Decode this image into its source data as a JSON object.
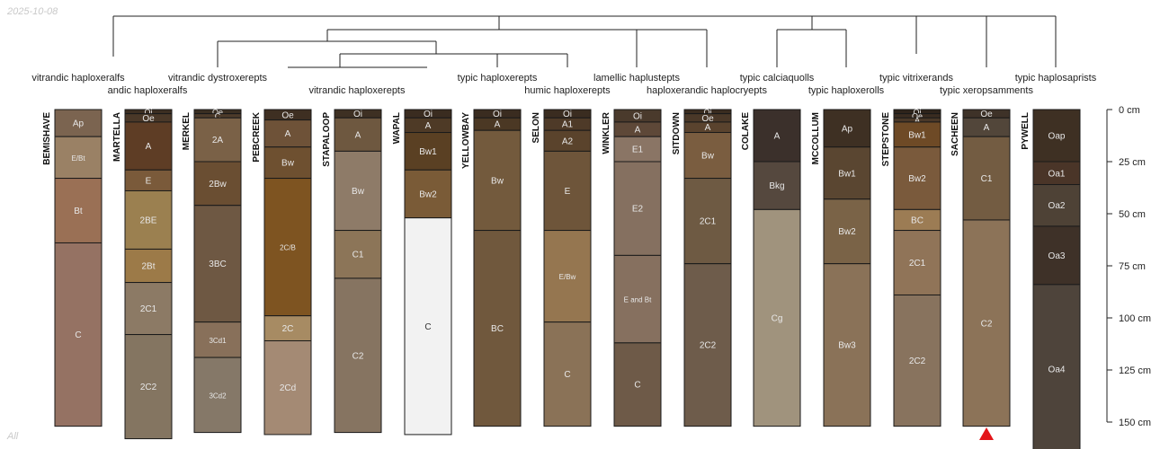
{
  "date_stamp": "2025-10-08",
  "footer_label": "All",
  "depth_axis": {
    "unit": "cm",
    "max": 150,
    "ticks": [
      0,
      25,
      50,
      75,
      100,
      125,
      150
    ],
    "tick_labels": [
      "0 cm",
      "25 cm",
      "50 cm",
      "75 cm",
      "100 cm",
      "125 cm",
      "150 cm"
    ]
  },
  "taxa_row1": [
    "vitrandic haploxeralfs",
    "vitrandic dystroxerepts",
    "typic haploxerepts",
    "lamellic haplustepts",
    "typic calciaquolls",
    "typic vitrixerands",
    "typic haplosaprists"
  ],
  "taxa_row2": [
    "andic haploxeralfs",
    "vitrandic haploxerepts",
    "humic haploxerepts",
    "haploxerandic haplocryepts",
    "typic haploxerolls",
    "typic xeropsamments"
  ],
  "profiles": [
    {
      "name": "BEMISHAVE",
      "horizons": [
        {
          "label": "Ap",
          "top": 0,
          "bottom": 13,
          "color": "#7b6450"
        },
        {
          "label": "E/Bt",
          "top": 13,
          "bottom": 33,
          "color": "#9a8165"
        },
        {
          "label": "Bt",
          "top": 33,
          "bottom": 64,
          "color": "#9a7055"
        },
        {
          "label": "C",
          "top": 64,
          "bottom": 152,
          "color": "#957263"
        }
      ]
    },
    {
      "name": "MARTELLA",
      "horizons": [
        {
          "label": "Oi",
          "top": 0,
          "bottom": 2,
          "color": "#3c2e22"
        },
        {
          "label": "Oe",
          "top": 2,
          "bottom": 6,
          "color": "#4a3828"
        },
        {
          "label": "A",
          "top": 6,
          "bottom": 29,
          "color": "#5e3d25"
        },
        {
          "label": "E",
          "top": 29,
          "bottom": 39,
          "color": "#7a5a3a"
        },
        {
          "label": "2BE",
          "top": 39,
          "bottom": 67,
          "color": "#9b8050"
        },
        {
          "label": "2Bt",
          "top": 67,
          "bottom": 83,
          "color": "#9c7a48"
        },
        {
          "label": "2C1",
          "top": 83,
          "bottom": 108,
          "color": "#8c7a65"
        },
        {
          "label": "2C2",
          "top": 108,
          "bottom": 158,
          "color": "#847561"
        }
      ]
    },
    {
      "name": "MERKEL",
      "horizons": [
        {
          "label": "Oe",
          "top": 0,
          "bottom": 2,
          "color": "#3a2e22"
        },
        {
          "label": "C",
          "top": 2,
          "bottom": 4,
          "color": "#4d3b2a"
        },
        {
          "label": "2A",
          "top": 4,
          "bottom": 25,
          "color": "#7a6147"
        },
        {
          "label": "2Bw",
          "top": 25,
          "bottom": 46,
          "color": "#6a4e32"
        },
        {
          "label": "3BC",
          "top": 46,
          "bottom": 102,
          "color": "#6e5843"
        },
        {
          "label": "3Cd1",
          "top": 102,
          "bottom": 119,
          "color": "#88705a"
        },
        {
          "label": "3Cd2",
          "top": 119,
          "bottom": 155,
          "color": "#857868"
        }
      ]
    },
    {
      "name": "PEBCREEK",
      "horizons": [
        {
          "label": "Oe",
          "top": 0,
          "bottom": 5,
          "color": "#3e2f22"
        },
        {
          "label": "A",
          "top": 5,
          "bottom": 18,
          "color": "#6e5238"
        },
        {
          "label": "Bw",
          "top": 18,
          "bottom": 33,
          "color": "#6e5030"
        },
        {
          "label": "2C/B",
          "top": 33,
          "bottom": 99,
          "color": "#7e5421"
        },
        {
          "label": "2C",
          "top": 99,
          "bottom": 111,
          "color": "#a78b63"
        },
        {
          "label": "2Cd",
          "top": 111,
          "bottom": 156,
          "color": "#a48a74"
        }
      ]
    },
    {
      "name": "STAPALOOP",
      "horizons": [
        {
          "label": "Oi",
          "top": 0,
          "bottom": 4,
          "color": "#3e3023"
        },
        {
          "label": "A",
          "top": 4,
          "bottom": 20,
          "color": "#6e5840"
        },
        {
          "label": "Bw",
          "top": 20,
          "bottom": 58,
          "color": "#8e7b68"
        },
        {
          "label": "C1",
          "top": 58,
          "bottom": 81,
          "color": "#8c7558"
        },
        {
          "label": "C2",
          "top": 81,
          "bottom": 155,
          "color": "#867461"
        }
      ]
    },
    {
      "name": "WAPAL",
      "horizons": [
        {
          "label": "Oi",
          "top": 0,
          "bottom": 4,
          "color": "#3a2c20"
        },
        {
          "label": "A",
          "top": 4,
          "bottom": 11,
          "color": "#4e3a26"
        },
        {
          "label": "Bw1",
          "top": 11,
          "bottom": 29,
          "color": "#5a4023"
        },
        {
          "label": "Bw2",
          "top": 29,
          "bottom": 52,
          "color": "#7a5b37"
        },
        {
          "label": "C",
          "top": 52,
          "bottom": 156,
          "color": "#f2f2f2"
        }
      ]
    },
    {
      "name": "YELLOWBAY",
      "horizons": [
        {
          "label": "Oi",
          "top": 0,
          "bottom": 4,
          "color": "#3a2c20"
        },
        {
          "label": "A",
          "top": 4,
          "bottom": 10,
          "color": "#4b3824"
        },
        {
          "label": "Bw",
          "top": 10,
          "bottom": 58,
          "color": "#735a3d"
        },
        {
          "label": "BC",
          "top": 58,
          "bottom": 152,
          "color": "#70583d"
        }
      ]
    },
    {
      "name": "SELON",
      "horizons": [
        {
          "label": "Oi",
          "top": 0,
          "bottom": 4,
          "color": "#3a2c20"
        },
        {
          "label": "A1",
          "top": 4,
          "bottom": 10,
          "color": "#4e3a28"
        },
        {
          "label": "A2",
          "top": 10,
          "bottom": 20,
          "color": "#5a432c"
        },
        {
          "label": "E",
          "top": 20,
          "bottom": 58,
          "color": "#6e553a"
        },
        {
          "label": "E/Bw",
          "top": 58,
          "bottom": 102,
          "color": "#957650"
        },
        {
          "label": "C",
          "top": 102,
          "bottom": 152,
          "color": "#8a7257"
        }
      ]
    },
    {
      "name": "WINKLER",
      "horizons": [
        {
          "label": "Oi",
          "top": 0,
          "bottom": 6,
          "color": "#4a3a2c"
        },
        {
          "label": "A",
          "top": 6,
          "bottom": 13,
          "color": "#5e4838"
        },
        {
          "label": "E1",
          "top": 13,
          "bottom": 25,
          "color": "#8a7565"
        },
        {
          "label": "E2",
          "top": 25,
          "bottom": 70,
          "color": "#857060"
        },
        {
          "label": "E and Bt",
          "top": 70,
          "bottom": 112,
          "color": "#86705f"
        },
        {
          "label": "C",
          "top": 112,
          "bottom": 152,
          "color": "#6e5a48"
        }
      ]
    },
    {
      "name": "SITDOWN",
      "horizons": [
        {
          "label": "Oi",
          "top": 0,
          "bottom": 2,
          "color": "#3a2c20"
        },
        {
          "label": "Oe",
          "top": 2,
          "bottom": 6,
          "color": "#4a3828"
        },
        {
          "label": "A",
          "top": 6,
          "bottom": 11,
          "color": "#5a432e"
        },
        {
          "label": "Bw",
          "top": 11,
          "bottom": 33,
          "color": "#7a5d40"
        },
        {
          "label": "2C1",
          "top": 33,
          "bottom": 74,
          "color": "#6e5a43"
        },
        {
          "label": "2C2",
          "top": 74,
          "bottom": 152,
          "color": "#6e5c4b"
        }
      ]
    },
    {
      "name": "COLAKE",
      "horizons": [
        {
          "label": "A",
          "top": 0,
          "bottom": 25,
          "color": "#3b302b"
        },
        {
          "label": "Bkg",
          "top": 25,
          "bottom": 48,
          "color": "#55483e"
        },
        {
          "label": "Cg",
          "top": 48,
          "bottom": 152,
          "color": "#a0937d"
        }
      ]
    },
    {
      "name": "MCCOLLUM",
      "horizons": [
        {
          "label": "Ap",
          "top": 0,
          "bottom": 18,
          "color": "#3e3023"
        },
        {
          "label": "Bw1",
          "top": 18,
          "bottom": 43,
          "color": "#5a4631"
        },
        {
          "label": "Bw2",
          "top": 43,
          "bottom": 74,
          "color": "#7a6347"
        },
        {
          "label": "Bw3",
          "top": 74,
          "bottom": 152,
          "color": "#8a7258"
        }
      ]
    },
    {
      "name": "STEPSTONE",
      "horizons": [
        {
          "label": "Oi",
          "top": 0,
          "bottom": 2,
          "color": "#2e241b"
        },
        {
          "label": "Oe",
          "top": 2,
          "bottom": 4,
          "color": "#3a2c20"
        },
        {
          "label": "A",
          "top": 4,
          "bottom": 6,
          "color": "#4a3828"
        },
        {
          "label": "Bw1",
          "top": 6,
          "bottom": 18,
          "color": "#6e4a26"
        },
        {
          "label": "Bw2",
          "top": 18,
          "bottom": 48,
          "color": "#7a5a3c"
        },
        {
          "label": "BC",
          "top": 48,
          "bottom": 58,
          "color": "#9c7c54"
        },
        {
          "label": "2C1",
          "top": 58,
          "bottom": 89,
          "color": "#907458"
        },
        {
          "label": "2C2",
          "top": 89,
          "bottom": 152,
          "color": "#88735e"
        }
      ]
    },
    {
      "name": "SACHEEN",
      "horizons": [
        {
          "label": "Oe",
          "top": 0,
          "bottom": 4,
          "color": "#3e3228"
        },
        {
          "label": "A",
          "top": 4,
          "bottom": 13,
          "color": "#52463a"
        },
        {
          "label": "C1",
          "top": 13,
          "bottom": 53,
          "color": "#735c42"
        },
        {
          "label": "C2",
          "top": 53,
          "bottom": 152,
          "color": "#8c7358"
        }
      ]
    },
    {
      "name": "PYWELL",
      "horizons": [
        {
          "label": "Oap",
          "top": 0,
          "bottom": 25,
          "color": "#3e3023"
        },
        {
          "label": "Oa1",
          "top": 25,
          "bottom": 36,
          "color": "#4a3528"
        },
        {
          "label": "Oa2",
          "top": 36,
          "bottom": 56,
          "color": "#4e4236"
        },
        {
          "label": "Oa3",
          "top": 56,
          "bottom": 84,
          "color": "#3e3128"
        },
        {
          "label": "Oa4",
          "top": 84,
          "bottom": 165,
          "color": "#4e443b"
        }
      ]
    }
  ],
  "colors": {
    "outline": "#1a1a1a",
    "label_light": "#e8e8e8",
    "label_dark": "#333333",
    "marker": "#e3151a"
  }
}
